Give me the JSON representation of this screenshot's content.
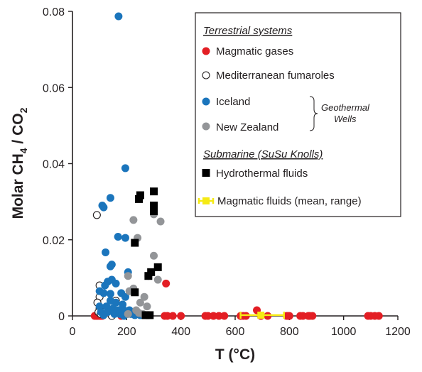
{
  "chart_data": {
    "type": "scatter",
    "xlabel": "T (°C)",
    "ylabel_parts": [
      "Molar CH",
      "4",
      " / CO",
      "2"
    ],
    "xlim": [
      0,
      1200
    ],
    "ylim": [
      0,
      0.08
    ],
    "xticks": [
      0,
      200,
      400,
      600,
      800,
      1000,
      1200
    ],
    "yticks": [
      0,
      0.02,
      0.04,
      0.06,
      0.08
    ],
    "ytick_labels": [
      "0",
      "0.02",
      "0.04",
      "0.06",
      "0.08"
    ],
    "grid": false,
    "legend_position": "top-right",
    "legend": {
      "heading_terrestrial": "Terrestrial systems",
      "heading_submarine": "Submarine (SuSu Knolls)",
      "group_label_line1": "Geothermal",
      "group_label_line2": "Wells"
    },
    "colors": {
      "magmatic_gases": "#e31e24",
      "iceland": "#1b75bc",
      "new_zealand": "#939598",
      "hydrothermal": "#000000",
      "magmatic_fluids": "#f5ea14",
      "axis": "#231f20"
    },
    "series": [
      {
        "name": "Magmatic gases",
        "marker": "filled-circle",
        "color": "#e31e24",
        "points": [
          [
            82,
            0
          ],
          [
            88,
            0
          ],
          [
            92,
            0
          ],
          [
            98,
            0
          ],
          [
            104,
            0
          ],
          [
            110,
            0
          ],
          [
            180,
            0
          ],
          [
            340,
            0
          ],
          [
            345,
            0.0085
          ],
          [
            350,
            0
          ],
          [
            370,
            0
          ],
          [
            400,
            0
          ],
          [
            490,
            0
          ],
          [
            500,
            0
          ],
          [
            520,
            0
          ],
          [
            540,
            0
          ],
          [
            560,
            0
          ],
          [
            620,
            0
          ],
          [
            630,
            0
          ],
          [
            640,
            0
          ],
          [
            680,
            0.0015
          ],
          [
            695,
            0
          ],
          [
            720,
            0
          ],
          [
            790,
            0
          ],
          [
            795,
            0
          ],
          [
            800,
            0
          ],
          [
            840,
            0
          ],
          [
            850,
            0
          ],
          [
            870,
            0
          ],
          [
            875,
            0
          ],
          [
            885,
            0
          ],
          [
            1090,
            0
          ],
          [
            1100,
            0
          ],
          [
            1115,
            0
          ],
          [
            1130,
            0
          ]
        ]
      },
      {
        "name": "Mediterranean fumaroles",
        "marker": "open-circle",
        "color": "#231f20",
        "points": [
          [
            90,
            0.0265
          ],
          [
            100,
            0.008
          ],
          [
            100,
            0.005
          ],
          [
            92,
            0.0035
          ],
          [
            100,
            0.002
          ],
          [
            96,
            0.001
          ],
          [
            104,
            0.0005
          ],
          [
            145,
            0
          ],
          [
            160,
            0.004
          ]
        ]
      },
      {
        "name": "Iceland",
        "marker": "filled-circle",
        "color": "#1b75bc",
        "points": [
          [
            170,
            0.0787
          ],
          [
            195,
            0.0388
          ],
          [
            110,
            0.029
          ],
          [
            140,
            0.031
          ],
          [
            115,
            0.0285
          ],
          [
            168,
            0.0208
          ],
          [
            195,
            0.0205
          ],
          [
            122,
            0.0167
          ],
          [
            140,
            0.013
          ],
          [
            145,
            0.0135
          ],
          [
            205,
            0.0115
          ],
          [
            145,
            0.0095
          ],
          [
            130,
            0.009
          ],
          [
            160,
            0.0085
          ],
          [
            120,
            0.008
          ],
          [
            100,
            0.0065
          ],
          [
            115,
            0.006
          ],
          [
            140,
            0.0058
          ],
          [
            180,
            0.006
          ],
          [
            195,
            0.005
          ],
          [
            140,
            0.004
          ],
          [
            160,
            0.0035
          ],
          [
            185,
            0.003
          ],
          [
            100,
            0.0025
          ],
          [
            125,
            0.0025
          ],
          [
            150,
            0.002
          ],
          [
            170,
            0.0015
          ],
          [
            190,
            0.0015
          ],
          [
            210,
            0.0015
          ],
          [
            105,
            0.001
          ],
          [
            130,
            0.001
          ],
          [
            155,
            0.0005
          ],
          [
            175,
            0.0005
          ],
          [
            200,
            0.0005
          ],
          [
            215,
            0.0005
          ],
          [
            230,
            0.0002
          ],
          [
            250,
            0.0002
          ],
          [
            115,
            0.0002
          ],
          [
            190,
            0
          ]
        ]
      },
      {
        "name": "New Zealand",
        "marker": "filled-circle",
        "color": "#939598",
        "points": [
          [
            225,
            0.0252
          ],
          [
            300,
            0.0267
          ],
          [
            325,
            0.0248
          ],
          [
            240,
            0.0205
          ],
          [
            300,
            0.0158
          ],
          [
            205,
            0.0105
          ],
          [
            280,
            0.0105
          ],
          [
            315,
            0.0095
          ],
          [
            225,
            0.0072
          ],
          [
            210,
            0.0065
          ],
          [
            265,
            0.005
          ],
          [
            250,
            0.0035
          ],
          [
            275,
            0.0025
          ],
          [
            235,
            0.0015
          ],
          [
            245,
            0.0008
          ],
          [
            205,
            0.0005
          ],
          [
            260,
            0.0005
          ]
        ]
      },
      {
        "name": "Hydrothermal fluids",
        "marker": "filled-square",
        "color": "#000000",
        "points": [
          [
            300,
            0.0327
          ],
          [
            250,
            0.0317
          ],
          [
            245,
            0.0307
          ],
          [
            300,
            0.029
          ],
          [
            300,
            0.0275
          ],
          [
            230,
            0.0192
          ],
          [
            315,
            0.0128
          ],
          [
            290,
            0.0115
          ],
          [
            280,
            0.0105
          ],
          [
            230,
            0.0062
          ],
          [
            270,
            0.0002
          ],
          [
            285,
            0.0002
          ]
        ]
      },
      {
        "name": "Magmatic fluids (mean, range)",
        "marker": "filled-square-with-range",
        "color": "#f5ea14",
        "points": [
          [
            695,
            0.0002
          ]
        ],
        "x_range": [
          620,
          780
        ]
      }
    ]
  }
}
